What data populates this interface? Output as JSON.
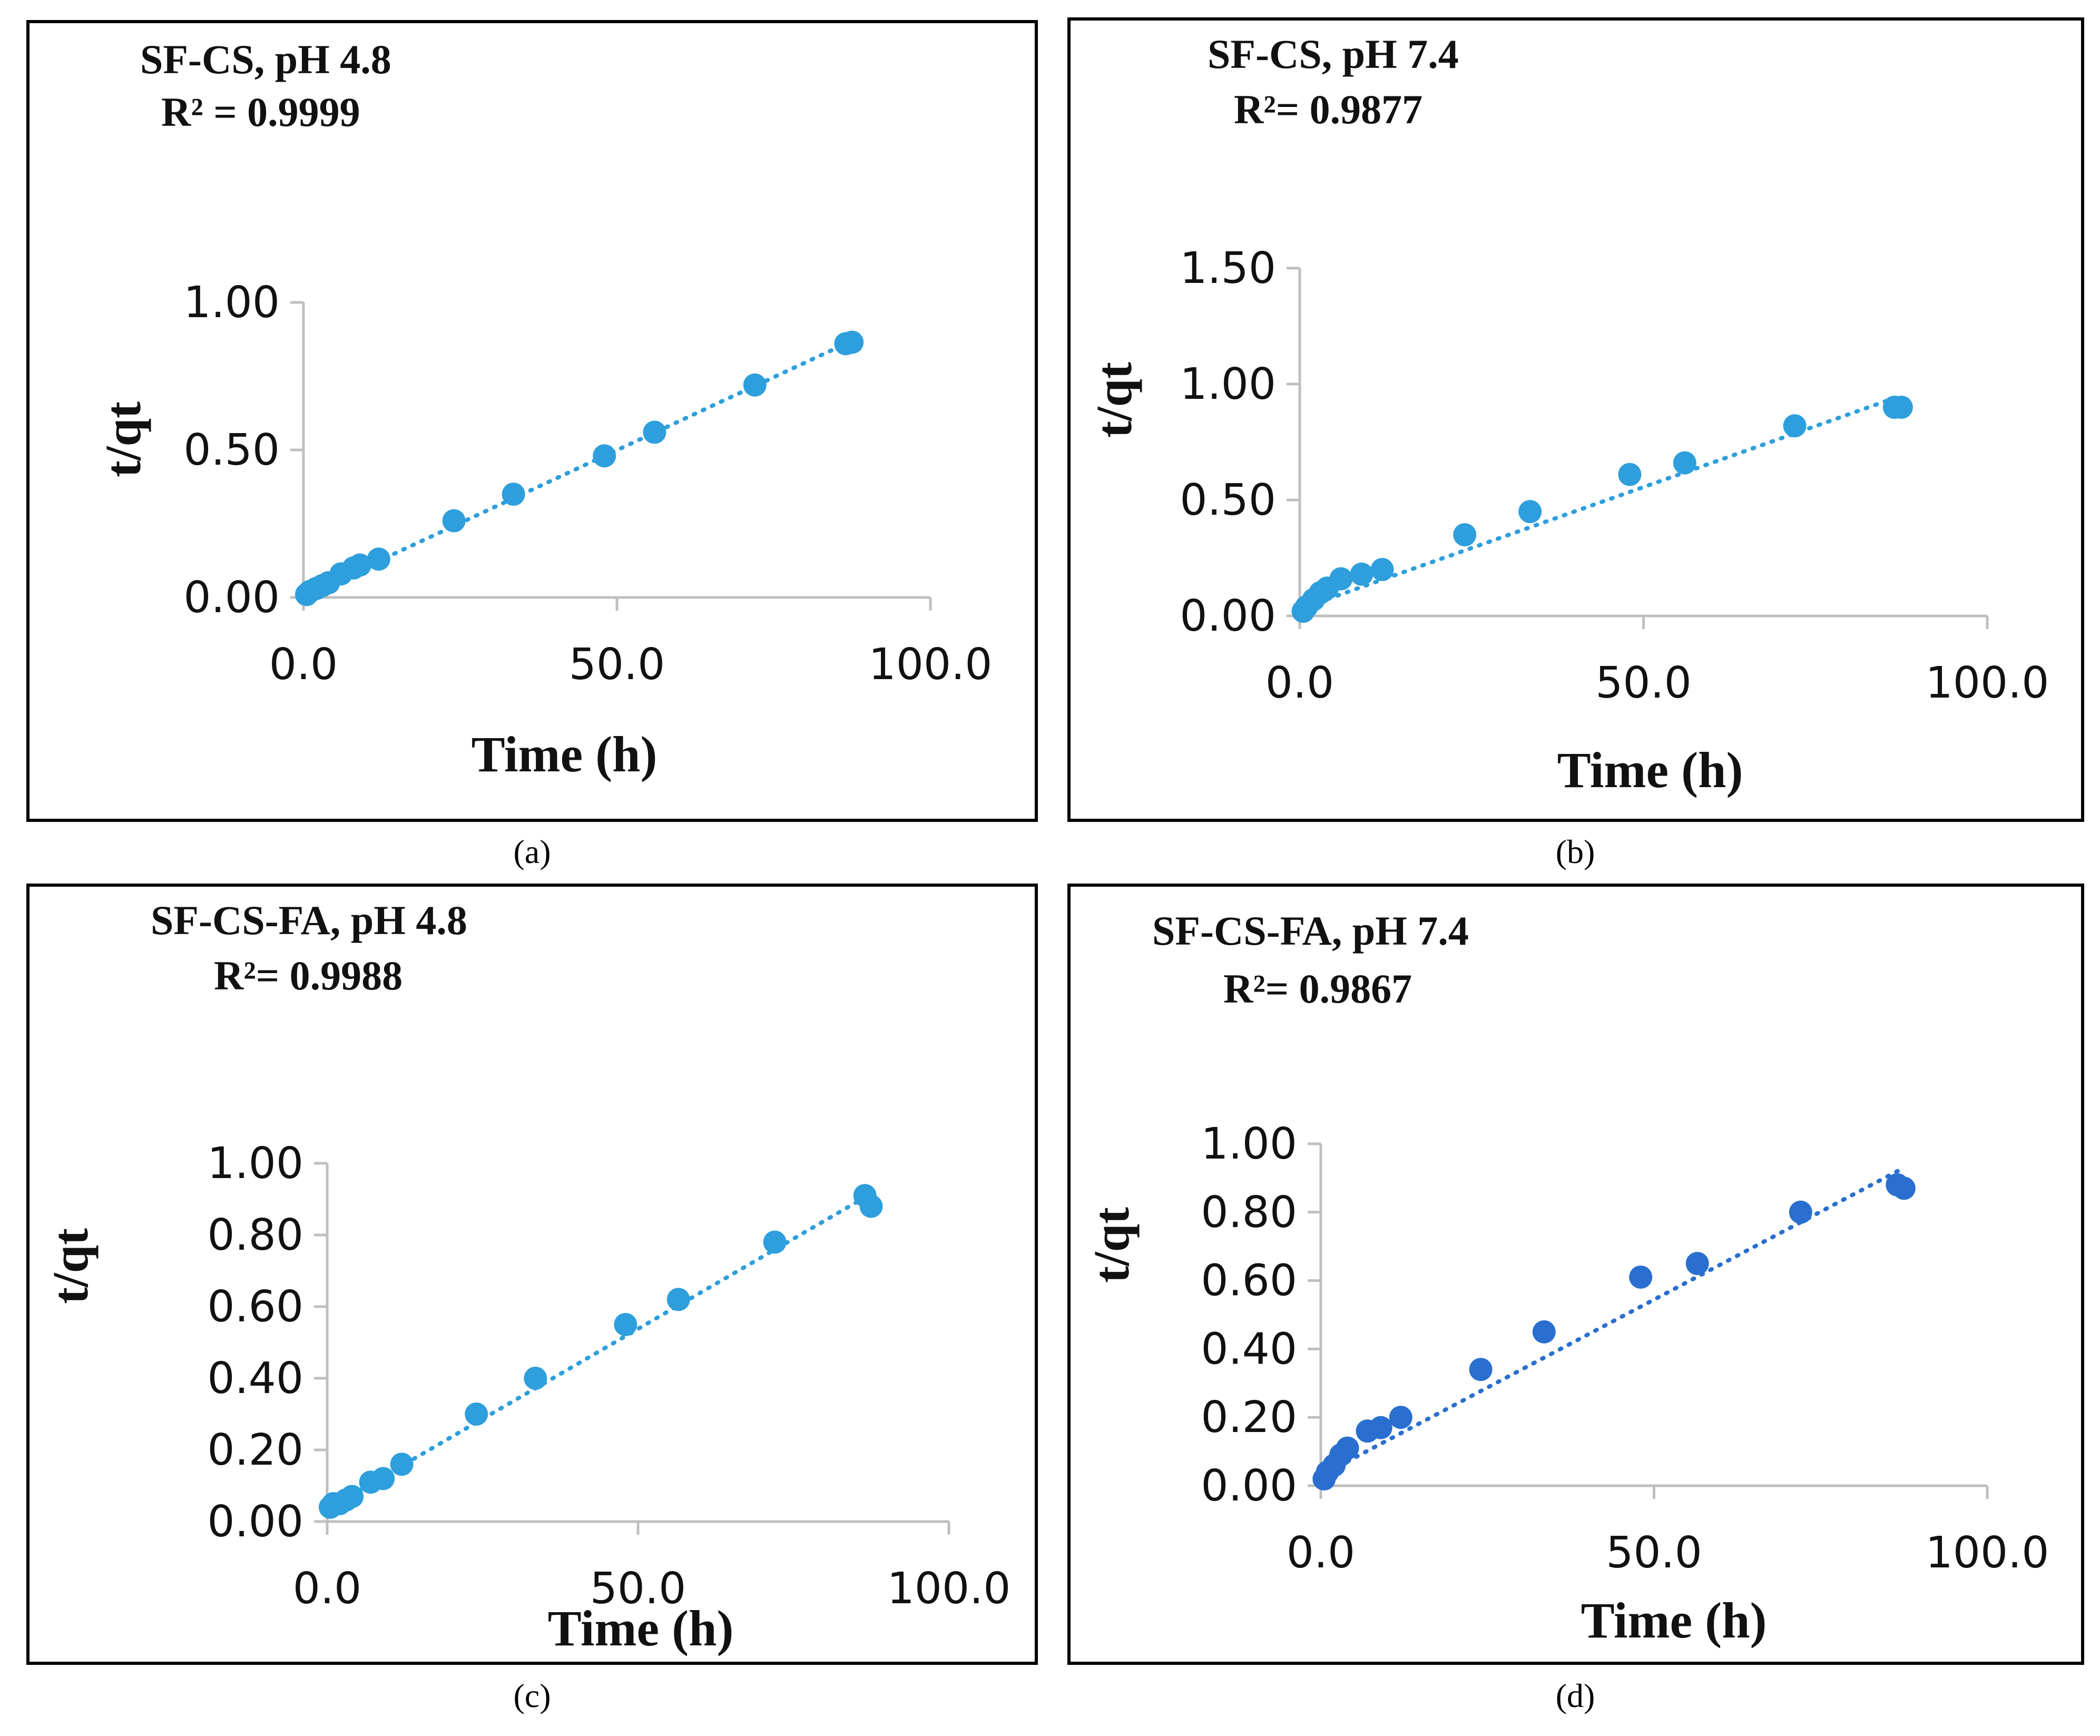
{
  "chart_data": [
    {
      "panel": "a",
      "type": "scatter",
      "title": "SF-CS, pH 4.8",
      "subtitle": "R² = 0.9999",
      "xlabel": "Time (h)",
      "ylabel": "t/qt",
      "xlim": [
        0,
        100
      ],
      "ylim": [
        0,
        1.0
      ],
      "xticks": [
        "0.0",
        "50.0",
        "100.0"
      ],
      "yticks": [
        "0.00",
        "0.50",
        "1.00"
      ],
      "ytick_values": [
        0,
        0.5,
        1.0
      ],
      "xtick_values": [
        0,
        50,
        100
      ],
      "marker_color": "#2e9fdc",
      "trendline_color": "#2e9fdc",
      "x": [
        0.5,
        1,
        2,
        3,
        4,
        6,
        8,
        9,
        12,
        24,
        33.5,
        48,
        56,
        72,
        86.5,
        87.5
      ],
      "y": [
        0.01,
        0.02,
        0.03,
        0.04,
        0.05,
        0.08,
        0.1,
        0.11,
        0.13,
        0.26,
        0.35,
        0.48,
        0.56,
        0.72,
        0.86,
        0.865
      ],
      "trend": [
        [
          0,
          0.005
        ],
        [
          87.5,
          0.87
        ]
      ]
    },
    {
      "panel": "b",
      "type": "scatter",
      "title": "SF-CS, pH 7.4",
      "subtitle": "R²= 0.9877",
      "xlabel": "Time (h)",
      "ylabel": "t/qt",
      "xlim": [
        0,
        100
      ],
      "ylim": [
        0,
        1.5
      ],
      "xticks": [
        "0.0",
        "50.0",
        "100.0"
      ],
      "yticks": [
        "0.00",
        "0.50",
        "1.00",
        "1.50"
      ],
      "ytick_values": [
        0,
        0.5,
        1.0,
        1.5
      ],
      "xtick_values": [
        0,
        50,
        100
      ],
      "marker_color": "#2e9fdc",
      "trendline_color": "#2e9fdc",
      "x": [
        0.5,
        1,
        2,
        3,
        4,
        6,
        9,
        12,
        24,
        33.5,
        48,
        56,
        72,
        86.5,
        87.5
      ],
      "y": [
        0.02,
        0.04,
        0.07,
        0.1,
        0.12,
        0.16,
        0.18,
        0.2,
        0.35,
        0.45,
        0.61,
        0.66,
        0.82,
        0.9,
        0.9
      ],
      "trend": [
        [
          0,
          0.03
        ],
        [
          87.5,
          0.95
        ]
      ]
    },
    {
      "panel": "c",
      "type": "scatter",
      "title": "SF-CS-FA, pH 4.8",
      "subtitle": "R²= 0.9988",
      "xlabel": "Time (h)",
      "ylabel": "t/qt",
      "xlim": [
        0,
        100
      ],
      "ylim": [
        0,
        1.0
      ],
      "xticks": [
        "0.0",
        "50.0",
        "100.0"
      ],
      "yticks": [
        "0.00",
        "0.20",
        "0.40",
        "0.60",
        "0.80",
        "1.00"
      ],
      "ytick_values": [
        0,
        0.2,
        0.4,
        0.6,
        0.8,
        1.0
      ],
      "xtick_values": [
        0,
        50,
        100
      ],
      "marker_color": "#2e9fdc",
      "trendline_color": "#2e9fdc",
      "x": [
        0.5,
        1,
        2,
        3,
        4,
        7,
        9,
        12,
        24,
        33.5,
        48,
        56.5,
        72,
        86.5,
        87.5
      ],
      "y": [
        0.04,
        0.05,
        0.05,
        0.06,
        0.07,
        0.11,
        0.12,
        0.16,
        0.3,
        0.4,
        0.55,
        0.62,
        0.78,
        0.91,
        0.88
      ],
      "trend": [
        [
          0,
          0.035
        ],
        [
          87.5,
          0.915
        ]
      ]
    },
    {
      "panel": "d",
      "type": "scatter",
      "title": "SF-CS-FA, pH 7.4",
      "subtitle": "R²= 0.9867",
      "xlabel": "Time (h)",
      "ylabel": "t/qt",
      "xlim": [
        0,
        100
      ],
      "ylim": [
        0,
        1.0
      ],
      "xticks": [
        "0.0",
        "50.0",
        "100.0"
      ],
      "yticks": [
        "0.00",
        "0.20",
        "0.40",
        "0.60",
        "0.80",
        "1.00"
      ],
      "ytick_values": [
        0,
        0.2,
        0.4,
        0.6,
        0.8,
        1.0
      ],
      "xtick_values": [
        0,
        50,
        100
      ],
      "marker_color": "#2a6fcf",
      "trendline_color": "#2a6fcf",
      "x": [
        0.5,
        1,
        2,
        3,
        4,
        7,
        9,
        12,
        24,
        33.5,
        48,
        56.5,
        72,
        86.5,
        87.5
      ],
      "y": [
        0.02,
        0.04,
        0.06,
        0.09,
        0.11,
        0.16,
        0.17,
        0.2,
        0.34,
        0.45,
        0.61,
        0.65,
        0.8,
        0.88,
        0.87
      ],
      "trend": [
        [
          0,
          0.03
        ],
        [
          87.5,
          0.93
        ]
      ]
    }
  ],
  "captions": {
    "a": "(a)",
    "b": "(b)",
    "c": "(c)",
    "d": "(d)"
  }
}
